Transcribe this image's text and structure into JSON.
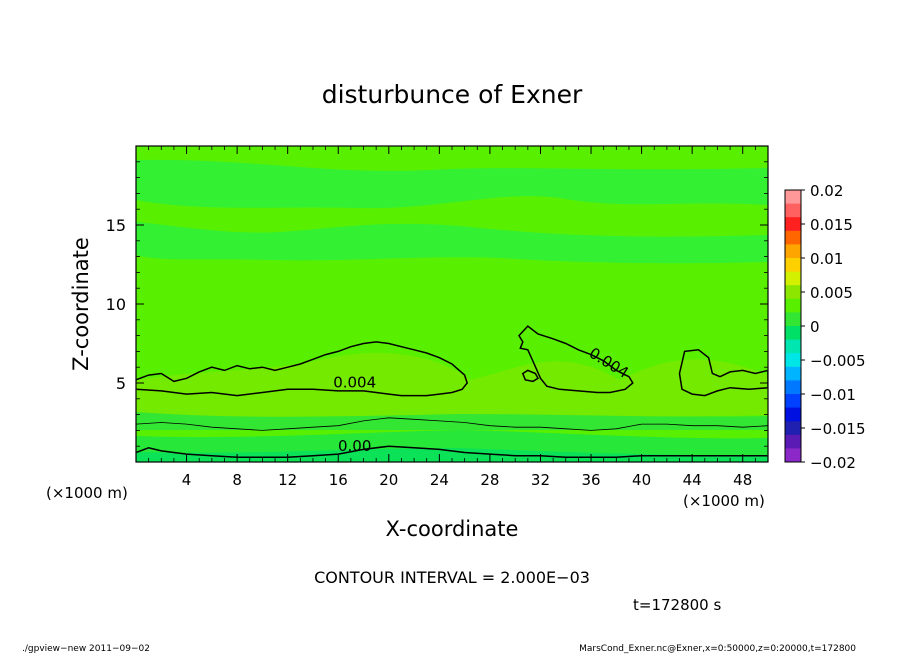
{
  "chart_data": {
    "type": "heatmap",
    "title": "disturbunce of Exner",
    "xlabel": "X-coordinate",
    "ylabel": "Z-coordinate",
    "x_unit": "(×1000 m)",
    "y_unit": "(×1000 m)",
    "xlim": [
      0,
      50
    ],
    "ylim": [
      0,
      20
    ],
    "x_ticks": [
      4,
      8,
      12,
      16,
      20,
      24,
      28,
      32,
      36,
      40,
      44,
      48
    ],
    "y_ticks": [
      5,
      10,
      15
    ],
    "colorbar": {
      "levels": [
        0.02,
        0.015,
        0.01,
        0.005,
        0,
        -0.005,
        -0.01,
        -0.015,
        -0.02
      ],
      "labels": [
        "0.02",
        "0.015",
        "0.01",
        "0.005",
        "0",
        "−0.005",
        "−0.01",
        "−0.015",
        "−0.02"
      ],
      "colors": [
        "#ff9999",
        "#ff6060",
        "#ff2020",
        "#ff6600",
        "#ffa500",
        "#ffd000",
        "#d2f000",
        "#8ce600",
        "#58f000",
        "#33e633",
        "#00e066",
        "#00e6b0",
        "#00e6e6",
        "#00b4ff",
        "#0078ff",
        "#0040ff",
        "#0010e0",
        "#2020b0",
        "#5a1ab4",
        "#8c28c8"
      ]
    },
    "contour_labels": [
      {
        "text": "0.004",
        "x": 17.3,
        "z": 4.7,
        "angle": 0
      },
      {
        "text": "0.004",
        "x": 37.2,
        "z": 6.0,
        "angle": 32
      },
      {
        "text": "0.00",
        "x": 17.3,
        "z": 0.7,
        "angle": 0
      }
    ],
    "contours": [
      {
        "level": 0.004,
        "points": [
          [
            0,
            5.2
          ],
          [
            1,
            5.5
          ],
          [
            2,
            5.6
          ],
          [
            3,
            5.1
          ],
          [
            4,
            5.3
          ],
          [
            5,
            5.7
          ],
          [
            6,
            6.0
          ],
          [
            7,
            5.8
          ],
          [
            8,
            6.1
          ],
          [
            9,
            5.9
          ],
          [
            10,
            6.0
          ],
          [
            11,
            5.8
          ],
          [
            12,
            6.0
          ],
          [
            13,
            6.2
          ],
          [
            14,
            6.5
          ],
          [
            15,
            6.8
          ],
          [
            16,
            7.0
          ],
          [
            17,
            7.3
          ],
          [
            18,
            7.5
          ],
          [
            19,
            7.6
          ],
          [
            20,
            7.5
          ],
          [
            21,
            7.3
          ],
          [
            22,
            7.1
          ],
          [
            23,
            6.9
          ],
          [
            24,
            6.6
          ],
          [
            25,
            6.2
          ],
          [
            26,
            5.5
          ],
          [
            26.2,
            5.0
          ],
          [
            25.8,
            4.6
          ],
          [
            25,
            4.4
          ],
          [
            24,
            4.3
          ],
          [
            23,
            4.2
          ],
          [
            22,
            4.2
          ],
          [
            21,
            4.2
          ],
          [
            20,
            4.3
          ],
          [
            19,
            4.4
          ],
          [
            18,
            4.5
          ],
          [
            16,
            4.5
          ],
          [
            14,
            4.6
          ],
          [
            12,
            4.6
          ],
          [
            10,
            4.4
          ],
          [
            8,
            4.2
          ],
          [
            6,
            4.4
          ],
          [
            4,
            4.3
          ],
          [
            2,
            4.5
          ],
          [
            0,
            4.6
          ]
        ]
      },
      {
        "level": 0.004,
        "points": [
          [
            30.3,
            8.0
          ],
          [
            31,
            8.6
          ],
          [
            31.8,
            8.1
          ],
          [
            33,
            7.8
          ],
          [
            34,
            7.5
          ],
          [
            35,
            7.1
          ],
          [
            36,
            6.8
          ],
          [
            37,
            6.4
          ],
          [
            38,
            5.8
          ],
          [
            39,
            5.4
          ],
          [
            39.3,
            5.0
          ],
          [
            38.7,
            4.6
          ],
          [
            37.5,
            4.4
          ],
          [
            36.5,
            4.4
          ],
          [
            35,
            4.5
          ],
          [
            33.5,
            4.6
          ],
          [
            32.5,
            4.8
          ],
          [
            32,
            5.3
          ],
          [
            31.5,
            6.2
          ],
          [
            31,
            7.1
          ],
          [
            30.4,
            7.2
          ],
          [
            30.6,
            7.6
          ]
        ]
      },
      {
        "level": 0.004,
        "points": [
          [
            31.4,
            5.1
          ],
          [
            30.8,
            5.2
          ],
          [
            30.6,
            5.6
          ],
          [
            31.0,
            5.8
          ],
          [
            31.6,
            5.6
          ],
          [
            31.8,
            5.3
          ]
        ]
      },
      {
        "level": 0.004,
        "points": [
          [
            43.4,
            7.0
          ],
          [
            44.5,
            7.1
          ],
          [
            45.3,
            6.6
          ],
          [
            45.6,
            5.6
          ],
          [
            46.2,
            5.4
          ],
          [
            47,
            5.7
          ],
          [
            48,
            5.8
          ],
          [
            49,
            5.6
          ],
          [
            50,
            5.8
          ],
          [
            50,
            4.7
          ],
          [
            48.5,
            4.6
          ],
          [
            47,
            4.7
          ],
          [
            46,
            4.5
          ],
          [
            45,
            4.2
          ],
          [
            44,
            4.3
          ],
          [
            43.2,
            4.6
          ],
          [
            43.0,
            5.6
          ]
        ]
      },
      {
        "level": 0.002,
        "points": [
          [
            0,
            2.4
          ],
          [
            2,
            2.5
          ],
          [
            4,
            2.4
          ],
          [
            6,
            2.2
          ],
          [
            8,
            2.1
          ],
          [
            10,
            2.0
          ],
          [
            12,
            2.1
          ],
          [
            14,
            2.2
          ],
          [
            16,
            2.3
          ],
          [
            18,
            2.6
          ],
          [
            20,
            2.8
          ],
          [
            22,
            2.7
          ],
          [
            24,
            2.6
          ],
          [
            26,
            2.5
          ],
          [
            28,
            2.3
          ],
          [
            30,
            2.2
          ],
          [
            32,
            2.2
          ],
          [
            34,
            2.1
          ],
          [
            36,
            2.0
          ],
          [
            38,
            2.1
          ],
          [
            40,
            2.4
          ],
          [
            42,
            2.4
          ],
          [
            44,
            2.3
          ],
          [
            46,
            2.3
          ],
          [
            48,
            2.2
          ],
          [
            50,
            2.3
          ]
        ]
      },
      {
        "level": 0,
        "points": [
          [
            0,
            0.6
          ],
          [
            1,
            0.9
          ],
          [
            2,
            0.7
          ],
          [
            4,
            0.5
          ],
          [
            6,
            0.4
          ],
          [
            8,
            0.3
          ],
          [
            10,
            0.3
          ],
          [
            12,
            0.3
          ],
          [
            14,
            0.4
          ],
          [
            16,
            0.5
          ],
          [
            18,
            0.8
          ],
          [
            20,
            1.0
          ],
          [
            22,
            0.9
          ],
          [
            24,
            0.8
          ],
          [
            26,
            0.6
          ],
          [
            28,
            0.5
          ],
          [
            30,
            0.4
          ],
          [
            32,
            0.4
          ],
          [
            34,
            0.3
          ],
          [
            36,
            0.3
          ],
          [
            38,
            0.3
          ],
          [
            40,
            0.4
          ],
          [
            42,
            0.4
          ],
          [
            44,
            0.4
          ],
          [
            46,
            0.4
          ],
          [
            48,
            0.4
          ],
          [
            50,
            0.4
          ]
        ]
      }
    ]
  },
  "contour_interval": "CONTOUR INTERVAL = 2.000E−03",
  "time_label": "t=172800 s",
  "footer_left": "./gpview−new  2011−09−02",
  "footer_right": "MarsCond_Exner.nc@Exner,x=0:50000,z=0:20000,t=172800"
}
